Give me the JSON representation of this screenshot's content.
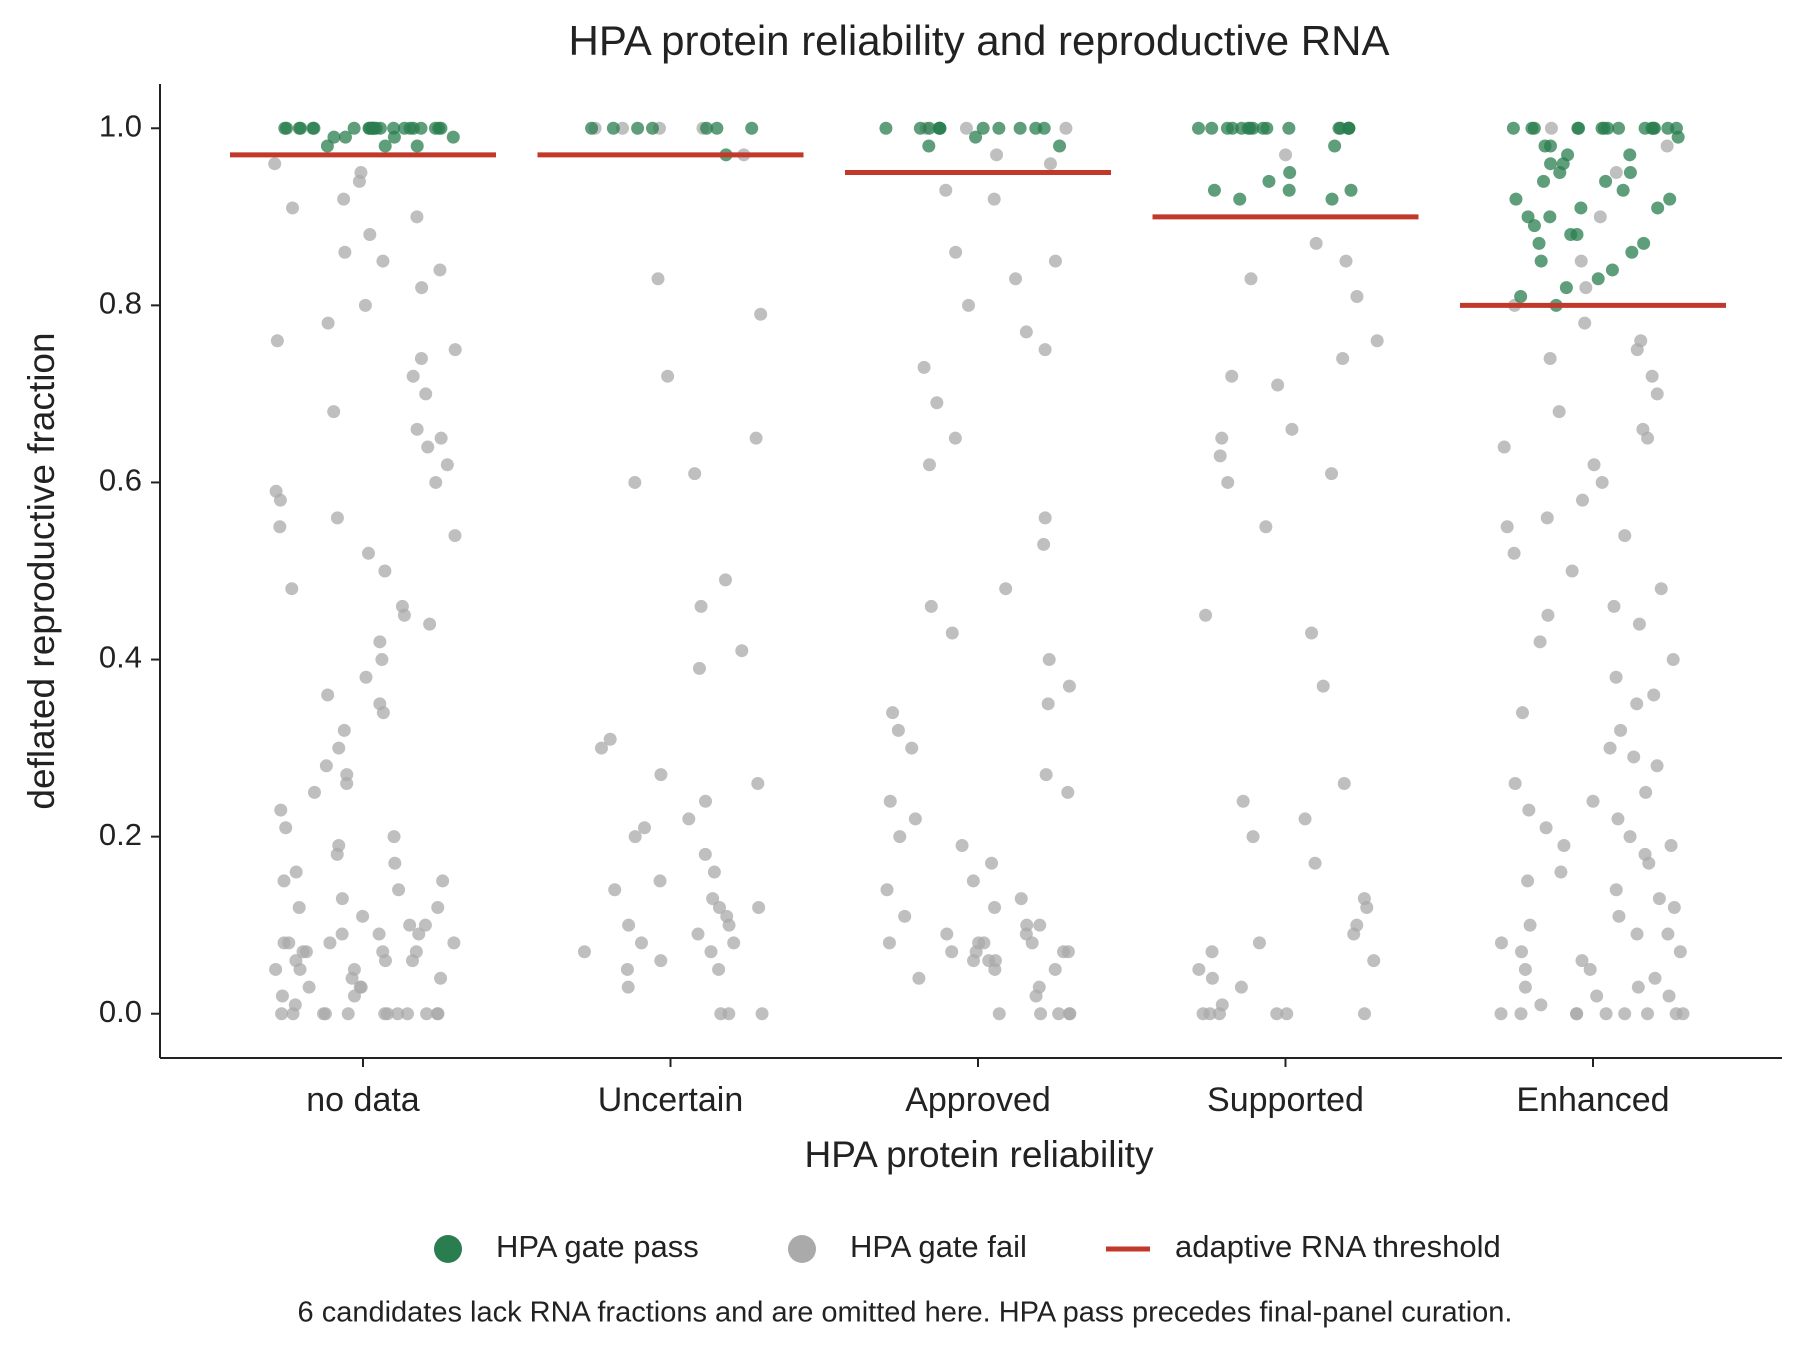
{
  "chart_data": {
    "type": "strip",
    "title": "HPA protein reliability and reproductive RNA",
    "x_label": "HPA protein reliability",
    "y_label": "deflated reproductive fraction",
    "categories": [
      "no data",
      "Uncertain",
      "Approved",
      "Supported",
      "Enhanced"
    ],
    "ylim": [
      -0.05,
      1.05
    ],
    "yticks": [
      {
        "value": 0,
        "label": "0.0"
      },
      0.2,
      0.4,
      0.6,
      0.8,
      {
        "value": 1,
        "label": "1.0"
      }
    ],
    "series": [
      {
        "name": "HPA gate fail",
        "color": "#aaaaaa",
        "values": [
          [
            0,
            0,
            0,
            0,
            0,
            0,
            0,
            0,
            0,
            0,
            0,
            0,
            0.01,
            0.02,
            0.03,
            0.03,
            0.04,
            0.05,
            0.05,
            0.06,
            0.06,
            0.07,
            0.07,
            0.07,
            0.08,
            0.08,
            0.08,
            0.09,
            0.09,
            0.1,
            0.1,
            0.11,
            0.12,
            0.13,
            0.14,
            0.15,
            0.16,
            0.17,
            0.18,
            0.19,
            0.2,
            0.21,
            0.23,
            0.25,
            0.26,
            0.28,
            0.3,
            0.32,
            0.34,
            0.36,
            0.38,
            0.4,
            0.42,
            0.44,
            0.46,
            0.48,
            0.5,
            0.52,
            0.54,
            0.56,
            0.58,
            0.6,
            0.62,
            0.64,
            0.66,
            0.68,
            0.7,
            0.72,
            0.74,
            0.76,
            0.78,
            0.8,
            0.82,
            0.84,
            0.86,
            0.88,
            0.9,
            0.92,
            0.94,
            0.96,
            0.05,
            0.06,
            0.07,
            0.08,
            0.09,
            0.04,
            0.03,
            0.02,
            0.15,
            0.12,
            0.27,
            0.35,
            0.45,
            0.55,
            0.65,
            0.75,
            0.85,
            0.91,
            0.95,
            0.59
          ],
          [
            0,
            0,
            0,
            0.03,
            0.05,
            0.05,
            0.06,
            0.07,
            0.07,
            0.08,
            0.08,
            0.09,
            0.1,
            0.1,
            0.11,
            0.12,
            0.13,
            0.14,
            0.15,
            0.16,
            0.18,
            0.2,
            0.21,
            0.22,
            0.24,
            0.26,
            0.27,
            0.3,
            0.31,
            0.39,
            0.41,
            0.46,
            0.49,
            0.6,
            0.61,
            0.65,
            0.72,
            0.79,
            0.83,
            1,
            1,
            1,
            1,
            0.97,
            0.12
          ],
          [
            0,
            0,
            0,
            0,
            0,
            0.02,
            0.03,
            0.04,
            0.05,
            0.05,
            0.06,
            0.06,
            0.07,
            0.07,
            0.07,
            0.08,
            0.08,
            0.08,
            0.09,
            0.09,
            0.1,
            0.1,
            0.11,
            0.12,
            0.13,
            0.14,
            0.15,
            0.17,
            0.19,
            0.2,
            0.22,
            0.25,
            0.27,
            0.3,
            0.32,
            0.34,
            0.37,
            0.4,
            0.43,
            0.46,
            0.48,
            0.53,
            0.56,
            0.62,
            0.65,
            0.69,
            0.73,
            0.75,
            0.77,
            0.8,
            0.83,
            0.85,
            0.86,
            0.92,
            0.93,
            0.96,
            0.97,
            1,
            1,
            1,
            0.06,
            0.07,
            0.08,
            0.24,
            0.35
          ],
          [
            0,
            0,
            0,
            0,
            0,
            0,
            0.01,
            0.03,
            0.04,
            0.05,
            0.06,
            0.07,
            0.08,
            0.09,
            0.1,
            0.12,
            0.13,
            0.17,
            0.2,
            0.22,
            0.24,
            0.26,
            0.37,
            0.43,
            0.45,
            0.55,
            0.6,
            0.61,
            0.63,
            0.65,
            0.66,
            0.71,
            0.72,
            0.74,
            0.76,
            0.81,
            0.83,
            0.85,
            0.87,
            0.97
          ],
          [
            0,
            0,
            0,
            0,
            0,
            0,
            0,
            0,
            0,
            0.01,
            0.02,
            0.03,
            0.04,
            0.05,
            0.06,
            0.07,
            0.08,
            0.09,
            0.1,
            0.11,
            0.12,
            0.13,
            0.14,
            0.15,
            0.16,
            0.17,
            0.18,
            0.19,
            0.2,
            0.21,
            0.22,
            0.23,
            0.24,
            0.26,
            0.28,
            0.3,
            0.32,
            0.34,
            0.36,
            0.38,
            0.4,
            0.42,
            0.44,
            0.46,
            0.48,
            0.5,
            0.52,
            0.54,
            0.56,
            0.58,
            0.6,
            0.62,
            0.64,
            0.66,
            0.68,
            0.7,
            0.72,
            0.74,
            0.76,
            0.78,
            0.8,
            0.82,
            0.85,
            0.9,
            0.95,
            0.98,
            1,
            0.05,
            0.07,
            0.09,
            0.03,
            0.02,
            0.25,
            0.35,
            0.45,
            0.55,
            0.65,
            0.75,
            0.29,
            0.19
          ]
        ]
      },
      {
        "name": "HPA gate pass",
        "color": "#2a7d4f",
        "values": [
          [
            1,
            1,
            1,
            1,
            1,
            1,
            1,
            1,
            1,
            1,
            1,
            1,
            1,
            1,
            1,
            1,
            1,
            1,
            1,
            1,
            1,
            1,
            0.99,
            0.99,
            0.98,
            0.98,
            0.99,
            0.98,
            0.99,
            1
          ],
          [
            1,
            1,
            1,
            1,
            1,
            1,
            1,
            0.97
          ],
          [
            1,
            1,
            1,
            1,
            1,
            1,
            1,
            1,
            1,
            1,
            0.99,
            0.98,
            0.98,
            1
          ],
          [
            1,
            1,
            1,
            1,
            1,
            1,
            1,
            1,
            1,
            1,
            1,
            1,
            1,
            1,
            1,
            1,
            0.98,
            0.95,
            0.94,
            0.93,
            0.93,
            0.92,
            0.92,
            0.93
          ],
          [
            1,
            1,
            1,
            1,
            1,
            1,
            1,
            1,
            1,
            1,
            1,
            1,
            1,
            1,
            1,
            0.99,
            0.98,
            0.98,
            0.97,
            0.97,
            0.96,
            0.96,
            0.95,
            0.94,
            0.94,
            0.93,
            0.92,
            0.91,
            0.91,
            0.9,
            0.9,
            0.89,
            0.88,
            0.88,
            0.87,
            0.87,
            0.86,
            0.85,
            0.84,
            0.83,
            0.82,
            0.81,
            0.8,
            0.92,
            0.95
          ]
        ]
      }
    ],
    "thresholds": {
      "name": "adaptive RNA threshold",
      "color": "#c0392b",
      "values": [
        0.97,
        0.97,
        0.95,
        0.9,
        0.8
      ]
    },
    "footnote": "6 candidates lack RNA fractions and are omitted here. HPA pass precedes final-panel curation."
  }
}
